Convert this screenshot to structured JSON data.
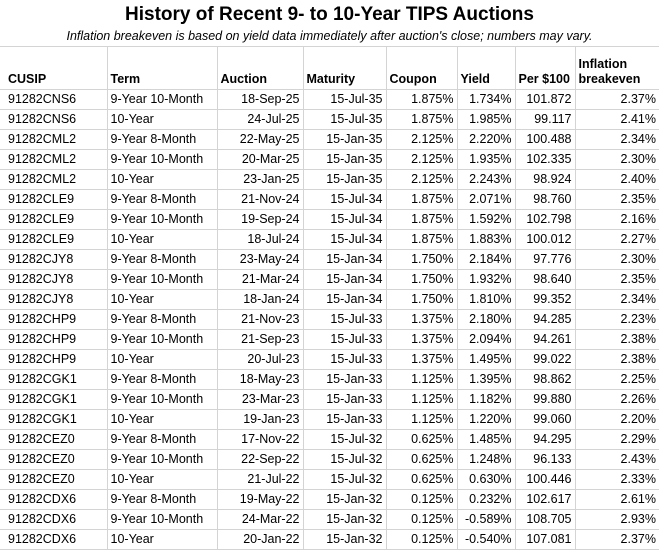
{
  "title": "History of Recent 9- to 10-Year TIPS Auctions",
  "subtitle": "Inflation breakeven is based on yield data immediately after auction's close; numbers may vary.",
  "chart_data": {
    "type": "table",
    "title": "History of Recent 9- to 10-Year TIPS Auctions",
    "columns": [
      "CUSIP",
      "Term",
      "Auction",
      "Maturity",
      "Coupon",
      "Yield",
      "Per $100",
      "Inflation breakeven"
    ],
    "rows": [
      [
        "91282CNS6",
        "9-Year 10-Month",
        "18-Sep-25",
        "15-Jul-35",
        "1.875%",
        "1.734%",
        "101.872",
        "2.37%"
      ],
      [
        "91282CNS6",
        "10-Year",
        "24-Jul-25",
        "15-Jul-35",
        "1.875%",
        "1.985%",
        "99.117",
        "2.41%"
      ],
      [
        "91282CML2",
        "9-Year 8-Month",
        "22-May-25",
        "15-Jan-35",
        "2.125%",
        "2.220%",
        "100.488",
        "2.34%"
      ],
      [
        "91282CML2",
        "9-Year 10-Month",
        "20-Mar-25",
        "15-Jan-35",
        "2.125%",
        "1.935%",
        "102.335",
        "2.30%"
      ],
      [
        "91282CML2",
        "10-Year",
        "23-Jan-25",
        "15-Jan-35",
        "2.125%",
        "2.243%",
        "98.924",
        "2.40%"
      ],
      [
        "91282CLE9",
        "9-Year 8-Month",
        "21-Nov-24",
        "15-Jul-34",
        "1.875%",
        "2.071%",
        "98.760",
        "2.35%"
      ],
      [
        "91282CLE9",
        "9-Year 10-Month",
        "19-Sep-24",
        "15-Jul-34",
        "1.875%",
        "1.592%",
        "102.798",
        "2.16%"
      ],
      [
        "91282CLE9",
        "10-Year",
        "18-Jul-24",
        "15-Jul-34",
        "1.875%",
        "1.883%",
        "100.012",
        "2.27%"
      ],
      [
        "91282CJY8",
        "9-Year 8-Month",
        "23-May-24",
        "15-Jan-34",
        "1.750%",
        "2.184%",
        "97.776",
        "2.30%"
      ],
      [
        "91282CJY8",
        "9-Year 10-Month",
        "21-Mar-24",
        "15-Jan-34",
        "1.750%",
        "1.932%",
        "98.640",
        "2.35%"
      ],
      [
        "91282CJY8",
        "10-Year",
        "18-Jan-24",
        "15-Jan-34",
        "1.750%",
        "1.810%",
        "99.352",
        "2.34%"
      ],
      [
        "91282CHP9",
        "9-Year 8-Month",
        "21-Nov-23",
        "15-Jul-33",
        "1.375%",
        "2.180%",
        "94.285",
        "2.23%"
      ],
      [
        "91282CHP9",
        "9-Year 10-Month",
        "21-Sep-23",
        "15-Jul-33",
        "1.375%",
        "2.094%",
        "94.261",
        "2.38%"
      ],
      [
        "91282CHP9",
        "10-Year",
        "20-Jul-23",
        "15-Jul-33",
        "1.375%",
        "1.495%",
        "99.022",
        "2.38%"
      ],
      [
        "91282CGK1",
        "9-Year 8-Month",
        "18-May-23",
        "15-Jan-33",
        "1.125%",
        "1.395%",
        "98.862",
        "2.25%"
      ],
      [
        "91282CGK1",
        "9-Year 10-Month",
        "23-Mar-23",
        "15-Jan-33",
        "1.125%",
        "1.182%",
        "99.880",
        "2.26%"
      ],
      [
        "91282CGK1",
        "10-Year",
        "19-Jan-23",
        "15-Jan-33",
        "1.125%",
        "1.220%",
        "99.060",
        "2.20%"
      ],
      [
        "91282CEZ0",
        "9-Year 8-Month",
        "17-Nov-22",
        "15-Jul-32",
        "0.625%",
        "1.485%",
        "94.295",
        "2.29%"
      ],
      [
        "91282CEZ0",
        "9-Year 10-Month",
        "22-Sep-22",
        "15-Jul-32",
        "0.625%",
        "1.248%",
        "96.133",
        "2.43%"
      ],
      [
        "91282CEZ0",
        "10-Year",
        "21-Jul-22",
        "15-Jul-32",
        "0.625%",
        "0.630%",
        "100.446",
        "2.33%"
      ],
      [
        "91282CDX6",
        "9-Year 8-Month",
        "19-May-22",
        "15-Jan-32",
        "0.125%",
        "0.232%",
        "102.617",
        "2.61%"
      ],
      [
        "91282CDX6",
        "9-Year 10-Month",
        "24-Mar-22",
        "15-Jan-32",
        "0.125%",
        "-0.589%",
        "108.705",
        "2.93%"
      ],
      [
        "91282CDX6",
        "10-Year",
        "20-Jan-22",
        "15-Jan-32",
        "0.125%",
        "-0.540%",
        "107.081",
        "2.37%"
      ]
    ]
  }
}
